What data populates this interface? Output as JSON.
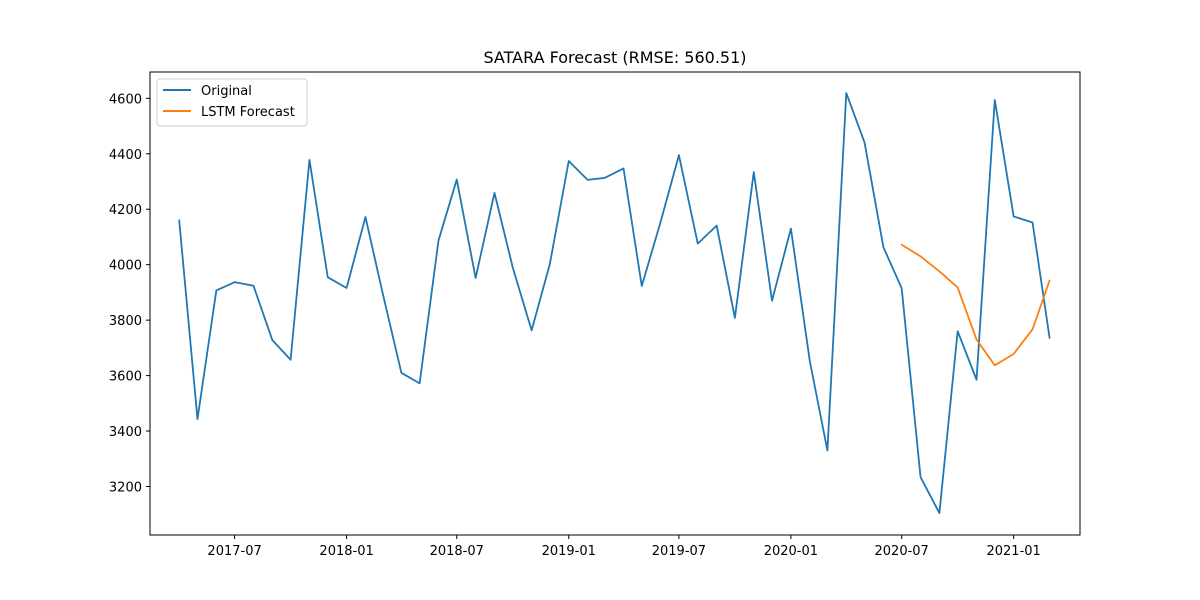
{
  "chart_data": {
    "type": "line",
    "title": "SATARA Forecast (RMSE: 560.51)",
    "xlabel": "",
    "ylabel": "",
    "x_ticks": [
      "2017-07",
      "2018-01",
      "2018-07",
      "2019-01",
      "2019-07",
      "2020-01",
      "2020-07",
      "2021-01"
    ],
    "y_ticks": [
      3200,
      3400,
      3600,
      3800,
      4000,
      4200,
      4400,
      4600
    ],
    "xlim": [
      "2017-02-12",
      "2021-04-20"
    ],
    "ylim": [
      3025,
      4695
    ],
    "grid": false,
    "legend_position": "top-left",
    "series": [
      {
        "name": "Original",
        "color": "#1f77b4",
        "x": [
          "2017-04",
          "2017-05",
          "2017-06",
          "2017-07",
          "2017-08",
          "2017-09",
          "2017-10",
          "2017-11",
          "2017-12",
          "2018-01",
          "2018-02",
          "2018-03",
          "2018-04",
          "2018-05",
          "2018-06",
          "2018-07",
          "2018-08",
          "2018-09",
          "2018-10",
          "2018-11",
          "2018-12",
          "2019-01",
          "2019-02",
          "2019-03",
          "2019-04",
          "2019-05",
          "2019-06",
          "2019-07",
          "2019-08",
          "2019-09",
          "2019-10",
          "2019-11",
          "2019-12",
          "2020-01",
          "2020-02",
          "2020-03",
          "2020-04",
          "2020-05",
          "2020-06",
          "2020-07",
          "2020-08",
          "2020-09",
          "2020-10",
          "2020-11",
          "2020-12",
          "2021-01",
          "2021-02",
          "2021-03"
        ],
        "values": [
          4160,
          3443,
          3907,
          3937,
          3924,
          3728,
          3657,
          4378,
          3955,
          3916,
          4172,
          3900,
          3610,
          3572,
          4087,
          4307,
          3952,
          4259,
          3990,
          3763,
          4003,
          4374,
          4306,
          4313,
          4347,
          3923,
          4155,
          4395,
          4076,
          4141,
          3808,
          4334,
          3870,
          4130,
          3653,
          3330,
          4619,
          4441,
          4063,
          3915,
          3234,
          3104,
          3760,
          3585,
          4594,
          4174,
          4152,
          3736
        ]
      },
      {
        "name": "LSTM Forecast",
        "color": "#ff7f0e",
        "x": [
          "2020-07",
          "2020-08",
          "2020-09",
          "2020-10",
          "2020-11",
          "2020-12",
          "2021-01",
          "2021-02",
          "2021-03"
        ],
        "values": [
          4072,
          4030,
          3976,
          3918,
          3730,
          3637,
          3678,
          3767,
          3943
        ]
      }
    ]
  }
}
